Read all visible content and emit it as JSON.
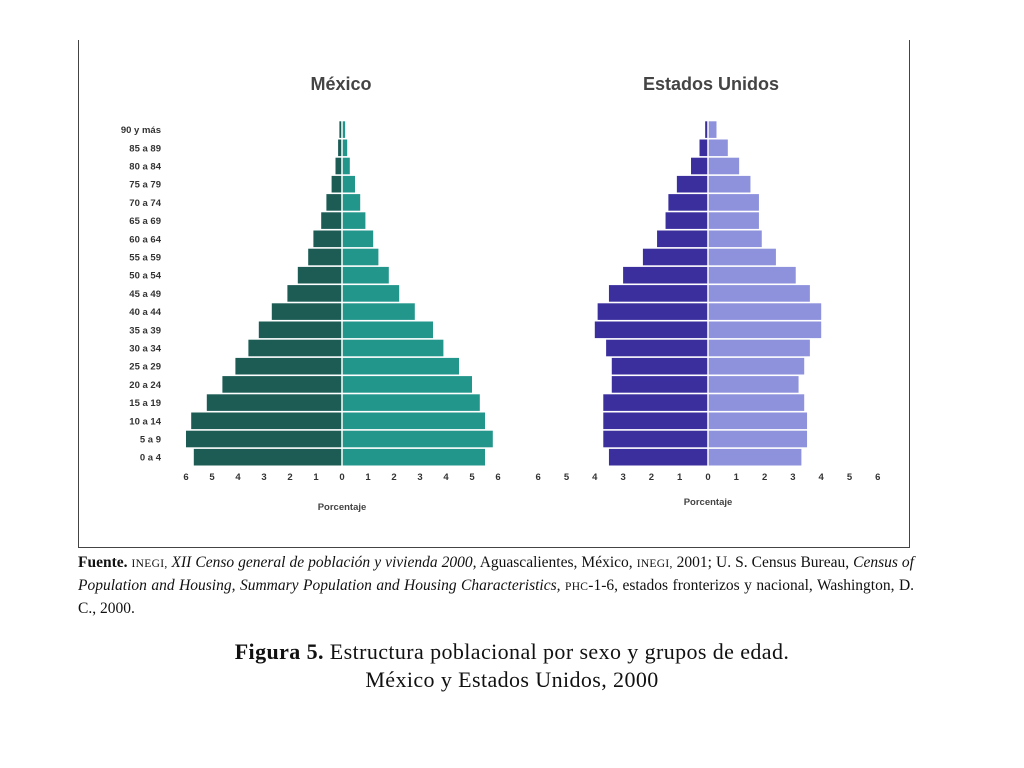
{
  "chart_data": [
    {
      "type": "bar",
      "subtype": "population-pyramid",
      "title": "México",
      "xlabel": "Porcentaje",
      "ylabel": "",
      "categories": [
        "0 a 4",
        "5 a 9",
        "10 a 14",
        "15 a 19",
        "20 a 24",
        "25 a 29",
        "30 a 34",
        "35 a 39",
        "40 a 44",
        "45 a 49",
        "50 a 54",
        "55 a 59",
        "60 a 64",
        "65 a 69",
        "70 a 74",
        "75 a 79",
        "80 a 84",
        "85 a 89",
        "90 y más"
      ],
      "x_ticks": [
        "6",
        "5",
        "4",
        "3",
        "2",
        "1",
        "0",
        "1",
        "2",
        "3",
        "4",
        "5",
        "6"
      ],
      "xlim": [
        -6,
        6
      ],
      "series": [
        {
          "values": [
            5.7,
            6.0,
            5.8,
            5.2,
            4.6,
            4.1,
            3.6,
            3.2,
            2.7,
            2.1,
            1.7,
            1.3,
            1.1,
            0.8,
            0.6,
            0.4,
            0.25,
            0.15,
            0.1
          ],
          "color": "#1d5c55"
        },
        {
          "values": [
            5.5,
            5.8,
            5.5,
            5.3,
            5.0,
            4.5,
            3.9,
            3.5,
            2.8,
            2.2,
            1.8,
            1.4,
            1.2,
            0.9,
            0.7,
            0.5,
            0.3,
            0.2,
            0.12
          ],
          "color": "#23968c"
        }
      ]
    },
    {
      "type": "bar",
      "subtype": "population-pyramid",
      "title": "Estados Unidos",
      "xlabel": "Porcentaje",
      "ylabel": "",
      "categories": [
        "0 a 4",
        "5 a 9",
        "10 a 14",
        "15 a 19",
        "20 a 24",
        "25 a 29",
        "30 a 34",
        "35 a 39",
        "40 a 44",
        "45 a 49",
        "50 a 54",
        "55 a 59",
        "60 a 64",
        "65 a 69",
        "70 a 74",
        "75 a 79",
        "80 a 84",
        "85 a 89",
        "90 y más"
      ],
      "x_ticks": [
        "6",
        "5",
        "4",
        "3",
        "2",
        "1",
        "0",
        "1",
        "2",
        "3",
        "4",
        "5",
        "6"
      ],
      "xlim": [
        -6,
        6
      ],
      "series": [
        {
          "values": [
            3.5,
            3.7,
            3.7,
            3.7,
            3.4,
            3.4,
            3.6,
            4.0,
            3.9,
            3.5,
            3.0,
            2.3,
            1.8,
            1.5,
            1.4,
            1.1,
            0.6,
            0.3,
            0.1
          ],
          "color": "#3b2f9e"
        },
        {
          "values": [
            3.3,
            3.5,
            3.5,
            3.4,
            3.2,
            3.4,
            3.6,
            4.0,
            4.0,
            3.6,
            3.1,
            2.4,
            1.9,
            1.8,
            1.8,
            1.5,
            1.1,
            0.7,
            0.3
          ],
          "color": "#8e92dd"
        }
      ]
    }
  ],
  "source": {
    "label": "Fuente.",
    "inegi": "INEGI,",
    "censo": "XII Censo general de población y vivienda 2000,",
    "text1": " Aguascalientes, México, ",
    "inegi2": "INEGI,",
    "text2": " 2001; U. S. Census Bureau, ",
    "census": "Census of Population and Housing, Summary Population and Housing Characteristics,",
    "phc": "PHC",
    "text3": "-1-6, estados fronterizos y nacional, Washington, D. C., 2000."
  },
  "caption": {
    "label": "Figura 5.",
    "line1": "Estructura poblacional por sexo y grupos de edad.",
    "line2": "México y Estados Unidos, 2000"
  }
}
